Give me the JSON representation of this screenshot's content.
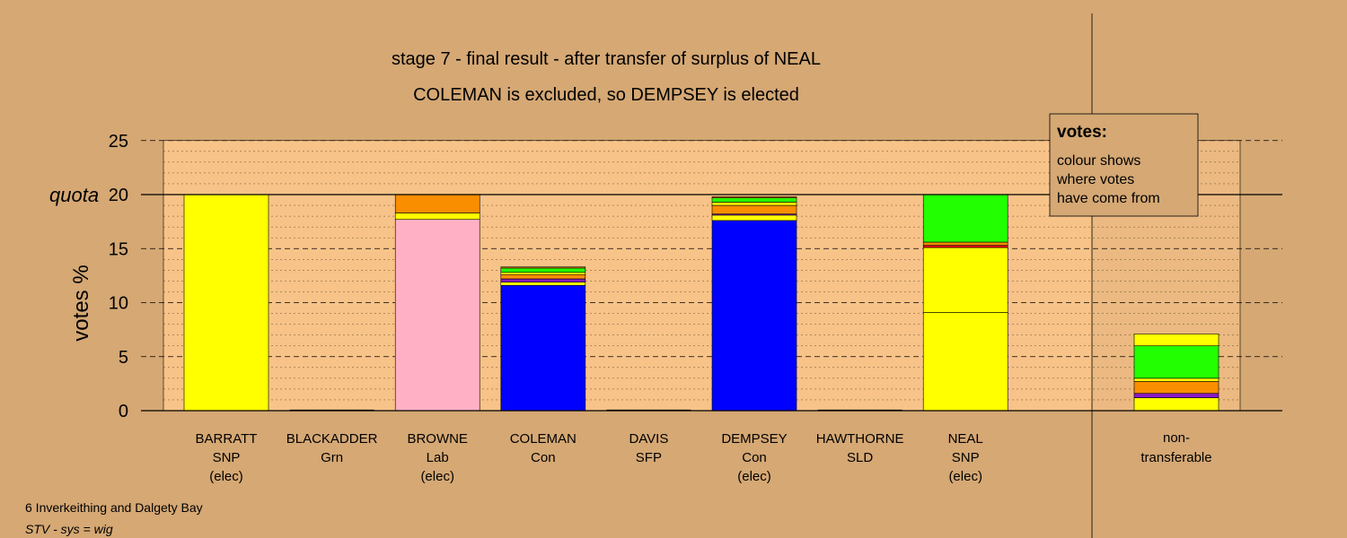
{
  "colors": {
    "background": "#D5A874",
    "plot_area": "#F8C388",
    "SNP": "#FFFF00",
    "Lab": "#FFB0C4",
    "Con": "#0000FF",
    "Grn": "#22FF00",
    "orange": "#F98E00",
    "purple": "#8A18C4",
    "red": "#E8000D",
    "legend_box": "#D5A874"
  },
  "chart_data": {
    "type": "bar",
    "stacked": true,
    "title": "stage 7 - final result - after transfer of surplus of NEAL",
    "subtitle": "COLEMAN is excluded, so DEMPSEY is elected",
    "ylabel": "votes %",
    "quota_label": "quota",
    "quota": 20,
    "ylim": [
      0,
      25
    ],
    "yticks": [
      0,
      5,
      10,
      15,
      20,
      25
    ],
    "grid": true,
    "legend": {
      "position": "top-right",
      "title": "votes:",
      "lines": [
        "colour shows",
        "where votes",
        "have come from"
      ]
    },
    "candidates": [
      {
        "name": "BARRATT",
        "party": "SNP",
        "status": "(elec)",
        "segments": [
          {
            "source": "SNP",
            "value": 20.0
          }
        ]
      },
      {
        "name": "BLACKADDER",
        "party": "Grn",
        "status": "",
        "segments": []
      },
      {
        "name": "BROWNE",
        "party": "Lab",
        "status": "(elec)",
        "segments": [
          {
            "source": "Lab",
            "value": 17.7
          },
          {
            "source": "SNP",
            "value": 0.6
          },
          {
            "source": "orange",
            "value": 1.7
          }
        ]
      },
      {
        "name": "COLEMAN",
        "party": "Con",
        "status": "",
        "segments": [
          {
            "source": "Con",
            "value": 11.6
          },
          {
            "source": "SNP",
            "value": 0.3
          },
          {
            "source": "purple",
            "value": 0.3
          },
          {
            "source": "orange",
            "value": 0.4
          },
          {
            "source": "SNP",
            "value": 0.2
          },
          {
            "source": "Grn",
            "value": 0.4
          },
          {
            "source": "orange",
            "value": 0.1
          }
        ]
      },
      {
        "name": "DAVIS",
        "party": "SFP",
        "status": "",
        "segments": []
      },
      {
        "name": "DEMPSEY",
        "party": "Con",
        "status": "(elec)",
        "segments": [
          {
            "source": "Con",
            "value": 17.6
          },
          {
            "source": "SNP",
            "value": 0.5
          },
          {
            "source": "purple",
            "value": 0.1
          },
          {
            "source": "orange",
            "value": 0.8
          },
          {
            "source": "SNP",
            "value": 0.3
          },
          {
            "source": "Grn",
            "value": 0.4
          },
          {
            "source": "orange",
            "value": 0.1
          }
        ]
      },
      {
        "name": "HAWTHORNE",
        "party": "SLD",
        "status": "",
        "segments": []
      },
      {
        "name": "NEAL",
        "party": "SNP",
        "status": "(elec)",
        "segments": [
          {
            "source": "SNP",
            "value": 9.1
          },
          {
            "source": "SNP",
            "value": 6.0
          },
          {
            "source": "red",
            "value": 0.2
          },
          {
            "source": "orange",
            "value": 0.3
          },
          {
            "source": "Grn",
            "value": 4.4
          }
        ]
      }
    ],
    "nontransferable": {
      "label_top": "non-",
      "label_bottom": "transferable",
      "segments": [
        {
          "source": "SNP",
          "value": 1.2
        },
        {
          "source": "purple",
          "value": 0.4
        },
        {
          "source": "orange",
          "value": 1.1
        },
        {
          "source": "SNP",
          "value": 0.3
        },
        {
          "source": "Grn",
          "value": 3.0
        },
        {
          "source": "SNP",
          "value": 1.1
        }
      ]
    }
  },
  "footer": {
    "line1": "6 Inverkeithing and Dalgety Bay",
    "line2": "STV - sys = wig"
  }
}
